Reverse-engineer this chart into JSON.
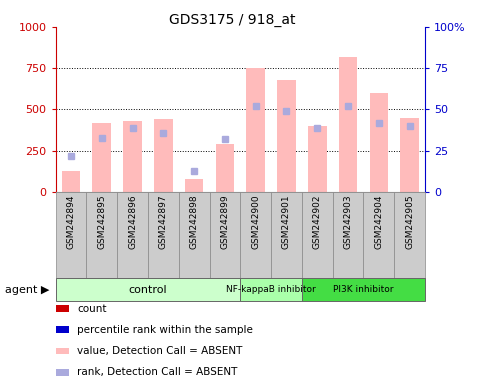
{
  "title": "GDS3175 / 918_at",
  "samples": [
    "GSM242894",
    "GSM242895",
    "GSM242896",
    "GSM242897",
    "GSM242898",
    "GSM242899",
    "GSM242900",
    "GSM242901",
    "GSM242902",
    "GSM242903",
    "GSM242904",
    "GSM242905"
  ],
  "absent_value": [
    130,
    420,
    430,
    440,
    80,
    290,
    750,
    680,
    400,
    820,
    600,
    450
  ],
  "absent_rank_pct": [
    22,
    33,
    39,
    36,
    13,
    32,
    52,
    49,
    39,
    52,
    42,
    40
  ],
  "groups": [
    {
      "label": "control",
      "start": 0,
      "end": 6,
      "color": "#ccffcc"
    },
    {
      "label": "NF-kappaB inhibitor",
      "start": 6,
      "end": 8,
      "color": "#aaffaa"
    },
    {
      "label": "PI3K inhibitor",
      "start": 8,
      "end": 12,
      "color": "#44dd44"
    }
  ],
  "ylim_left": [
    0,
    1000
  ],
  "ylim_right": [
    0,
    100
  ],
  "yticks_left": [
    0,
    250,
    500,
    750,
    1000
  ],
  "ytick_labels_left": [
    "0",
    "250",
    "500",
    "750",
    "1000"
  ],
  "yticks_right": [
    0,
    25,
    50,
    75,
    100
  ],
  "ytick_labels_right": [
    "0",
    "25",
    "50",
    "75",
    "100%"
  ],
  "absent_bar_color": "#ffbbbb",
  "absent_rank_color": "#aaaadd",
  "left_axis_color": "#cc0000",
  "right_axis_color": "#0000cc",
  "sample_box_color": "#cccccc",
  "sample_box_edge": "#888888",
  "legend_items": [
    {
      "color": "#cc0000",
      "label": "count"
    },
    {
      "color": "#0000cc",
      "label": "percentile rank within the sample"
    },
    {
      "color": "#ffbbbb",
      "label": "value, Detection Call = ABSENT"
    },
    {
      "color": "#aaaadd",
      "label": "rank, Detection Call = ABSENT"
    }
  ]
}
